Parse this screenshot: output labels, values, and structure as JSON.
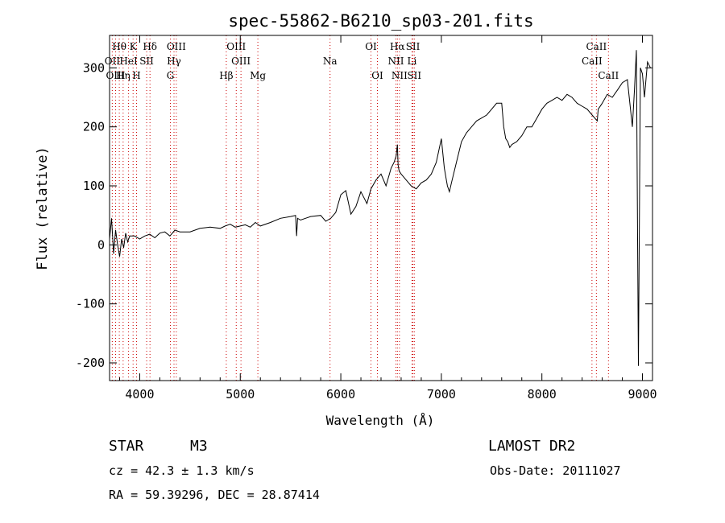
{
  "chart_data": {
    "type": "line",
    "title": "spec-55862-B6210_sp03-201.fits",
    "xlabel": "Wavelength (Å)",
    "ylabel": "Flux (relative)",
    "xlim": [
      3700,
      9100
    ],
    "ylim": [
      -230,
      355
    ],
    "x_ticks": [
      4000,
      5000,
      6000,
      7000,
      8000,
      9000
    ],
    "y_ticks": [
      -200,
      -100,
      0,
      100,
      200,
      300
    ],
    "series": [
      {
        "x": [
          3700,
          3720,
          3740,
          3760,
          3780,
          3800,
          3820,
          3840,
          3860,
          3880,
          3900,
          3950,
          4000,
          4050,
          4100,
          4150,
          4200,
          4250,
          4300,
          4350,
          4400,
          4500,
          4600,
          4700,
          4800,
          4850,
          4900,
          4950,
          5000,
          5050,
          5100,
          5150,
          5200,
          5300,
          5400,
          5500,
          5550,
          5560,
          5570,
          5600,
          5700,
          5800,
          5850,
          5900,
          5950,
          6000,
          6050,
          6100,
          6150,
          6200,
          6230,
          6260,
          6300,
          6350,
          6400,
          6450,
          6500,
          6530,
          6550,
          6563,
          6570,
          6580,
          6600,
          6650,
          6700,
          6750,
          6800,
          6850,
          6900,
          6950,
          7000,
          7030,
          7050,
          7060,
          7080,
          7100,
          7150,
          7200,
          7250,
          7300,
          7350,
          7400,
          7450,
          7500,
          7550,
          7600,
          7620,
          7640,
          7660,
          7680,
          7700,
          7750,
          7800,
          7850,
          7900,
          7950,
          8000,
          8050,
          8100,
          8150,
          8200,
          8250,
          8300,
          8350,
          8400,
          8450,
          8500,
          8550,
          8560,
          8600,
          8650,
          8700,
          8750,
          8800,
          8850,
          8900,
          8920,
          8940,
          8960,
          8980,
          9000,
          9020,
          9050,
          9080
        ],
        "y": [
          10,
          45,
          -15,
          25,
          0,
          -20,
          10,
          -5,
          20,
          5,
          15,
          15,
          10,
          15,
          18,
          12,
          20,
          22,
          15,
          25,
          22,
          22,
          28,
          30,
          28,
          32,
          35,
          30,
          32,
          34,
          30,
          38,
          32,
          38,
          45,
          48,
          50,
          15,
          45,
          42,
          48,
          50,
          40,
          45,
          55,
          85,
          92,
          52,
          65,
          90,
          80,
          70,
          95,
          110,
          120,
          100,
          130,
          140,
          150,
          170,
          135,
          125,
          120,
          110,
          100,
          95,
          105,
          110,
          120,
          140,
          180,
          130,
          110,
          100,
          90,
          105,
          140,
          175,
          190,
          200,
          210,
          215,
          220,
          230,
          240,
          240,
          200,
          180,
          175,
          165,
          170,
          175,
          185,
          200,
          200,
          215,
          230,
          240,
          245,
          250,
          245,
          255,
          250,
          240,
          235,
          230,
          220,
          210,
          230,
          240,
          255,
          250,
          262,
          275,
          280,
          200,
          260,
          330,
          -205,
          300,
          290,
          250,
          310,
          300
        ]
      }
    ],
    "line_markers": [
      {
        "label": "Hθ",
        "x": 3797
      },
      {
        "label": "K",
        "x": 3934
      },
      {
        "label": "Hδ",
        "x": 4102
      },
      {
        "label": "OIII",
        "x": 4364
      },
      {
        "label": "OIII",
        "x": 4960
      },
      {
        "label": "OI",
        "x": 6300
      },
      {
        "label": "Hα",
        "x": 6563
      },
      {
        "label": "SII",
        "x": 6717
      },
      {
        "label": "CaII",
        "x": 8542
      },
      {
        "label": "OII",
        "x": 3727
      },
      {
        "label": "HeI",
        "x": 3889
      },
      {
        "label": "SII",
        "x": 4069
      },
      {
        "label": "Hγ",
        "x": 4341
      },
      {
        "label": "OIII",
        "x": 5007
      },
      {
        "label": "Na",
        "x": 5893
      },
      {
        "label": "NII",
        "x": 6548
      },
      {
        "label": "Li",
        "x": 6708
      },
      {
        "label": "CaII",
        "x": 8498
      },
      {
        "label": "OIII",
        "x": 3760
      },
      {
        "label": "Hη",
        "x": 3835
      },
      {
        "label": "H",
        "x": 3968
      },
      {
        "label": "G",
        "x": 4305
      },
      {
        "label": "Hβ",
        "x": 4861
      },
      {
        "label": "Mg",
        "x": 5175
      },
      {
        "label": "OI",
        "x": 6364
      },
      {
        "label": "NII",
        "x": 6583
      },
      {
        "label": "SII",
        "x": 6731
      },
      {
        "label": "CaII",
        "x": 8662
      }
    ]
  },
  "info": {
    "object_class": "STAR",
    "subclass": "M3",
    "survey": "LAMOST DR2",
    "cz": "cz = 42.3 ± 1.3 km/s",
    "obs_date": "Obs-Date: 20111027",
    "coords": "RA =  59.39296, DEC =  28.87414"
  }
}
